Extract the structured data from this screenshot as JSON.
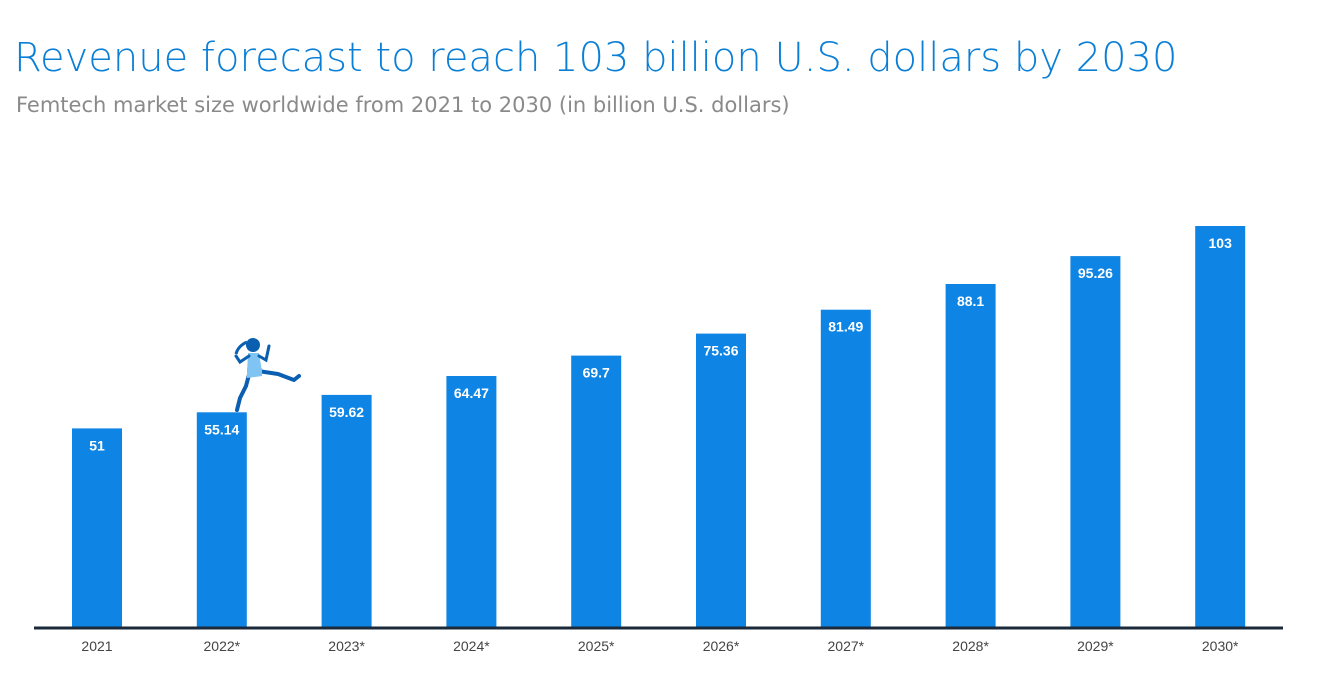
{
  "header": {
    "title": "Revenue forecast to reach 103 billion U.S. dollars by 2030",
    "subtitle": "Femtech market size worldwide from 2021 to 2030 (in billion U.S. dollars)"
  },
  "colors": {
    "bar": "#0e84e4",
    "axis": "#1b2a3a",
    "title": "#0b7fd6",
    "figure_light": "#7fc4f2",
    "figure_dark": "#0a5fb0"
  },
  "illustration": {
    "icon": "running-woman-icon"
  },
  "chart_data": {
    "type": "bar",
    "title": "Revenue forecast to reach 103 billion U.S. dollars by 2030",
    "subtitle": "Femtech market size worldwide from 2021 to 2030 (in billion U.S. dollars)",
    "xlabel": "",
    "ylabel": "",
    "categories": [
      "2021",
      "2022*",
      "2023*",
      "2024*",
      "2025*",
      "2026*",
      "2027*",
      "2028*",
      "2029*",
      "2030*"
    ],
    "values": [
      51,
      55.14,
      59.62,
      64.47,
      69.7,
      75.36,
      81.49,
      88.1,
      95.26,
      103
    ],
    "value_labels": [
      "51",
      "55.14",
      "59.62",
      "64.47",
      "69.7",
      "75.36",
      "81.49",
      "88.1",
      "95.26",
      "103"
    ],
    "ylim": [
      0,
      103
    ],
    "grid": false,
    "legend": "none"
  }
}
